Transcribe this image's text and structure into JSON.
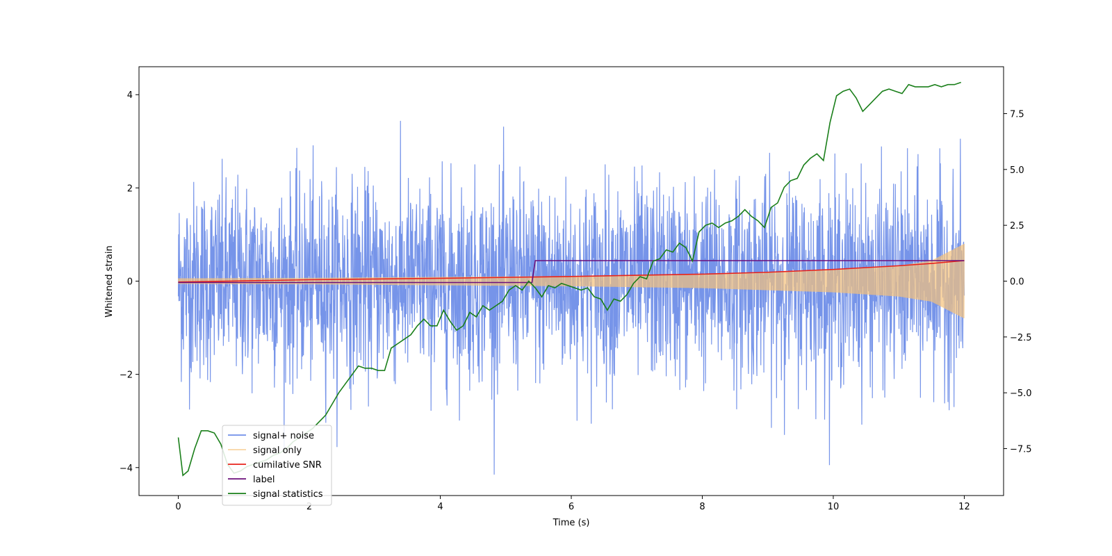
{
  "chart_data": {
    "type": "line",
    "xlabel": "Time (s)",
    "ylabel": "Whitened strain",
    "xlim": [
      -0.6,
      12.6
    ],
    "ylim": [
      -4.6,
      4.6
    ],
    "y2lim": [
      -9.6,
      9.6
    ],
    "x_ticks": [
      0,
      2,
      4,
      6,
      8,
      10,
      12
    ],
    "x_tick_labels": [
      "0",
      "2",
      "4",
      "6",
      "8",
      "10",
      "12"
    ],
    "y_ticks": [
      -4,
      -2,
      0,
      2,
      4
    ],
    "y_tick_labels": [
      "−4",
      "−2",
      "0",
      "2",
      "4"
    ],
    "y2_ticks": [
      -7.5,
      -5.0,
      -2.5,
      0.0,
      2.5,
      5.0,
      7.5
    ],
    "y2_tick_labels": [
      "−7.5",
      "−5.0",
      "−2.5",
      "0.0",
      "2.5",
      "5.0",
      "7.5"
    ],
    "grid": false,
    "legend_placement": "lower-left",
    "series": [
      {
        "name": "signal+ noise",
        "color": "#6f8ee8",
        "axis": "left",
        "description_values": {
          "t_start": 0,
          "t_end": 12,
          "sigma": 1.0,
          "peak_max": 4.15,
          "peak_min": -4.15
        }
      },
      {
        "name": "signal only",
        "color": "#f5c27a",
        "axis": "left",
        "envelope": {
          "x": [
            0,
            2,
            4,
            6,
            8,
            10,
            11,
            11.5,
            12
          ],
          "amp": [
            0.06,
            0.07,
            0.09,
            0.11,
            0.15,
            0.24,
            0.33,
            0.44,
            0.8
          ]
        }
      },
      {
        "name": "cumilative SNR",
        "color": "#e8221b",
        "axis": "left",
        "x": [
          0,
          2,
          4,
          6,
          8,
          9,
          10,
          11,
          11.5,
          12
        ],
        "y": [
          -0.02,
          0.03,
          0.06,
          0.1,
          0.15,
          0.19,
          0.25,
          0.33,
          0.38,
          0.44
        ]
      },
      {
        "name": "label",
        "color": "#6a0f7a",
        "axis": "left",
        "x": [
          0,
          5.4,
          5.45,
          12
        ],
        "y": [
          -0.03,
          -0.03,
          0.44,
          0.44
        ]
      },
      {
        "name": "signal statistics",
        "color": "#1a7f1a",
        "axis": "right",
        "x": [
          0,
          0.07,
          0.15,
          0.25,
          0.35,
          0.45,
          0.55,
          0.65,
          0.75,
          0.85,
          0.95,
          1.05,
          1.15,
          1.25,
          1.35,
          1.45,
          1.55,
          1.65,
          1.75,
          1.85,
          1.95,
          2.05,
          2.15,
          2.25,
          2.35,
          2.45,
          2.55,
          2.65,
          2.75,
          2.85,
          2.95,
          3.05,
          3.15,
          3.25,
          3.35,
          3.45,
          3.55,
          3.65,
          3.75,
          3.85,
          3.95,
          4.05,
          4.15,
          4.25,
          4.35,
          4.45,
          4.55,
          4.65,
          4.75,
          4.85,
          4.95,
          5.05,
          5.15,
          5.25,
          5.35,
          5.45,
          5.55,
          5.65,
          5.75,
          5.85,
          5.95,
          6.05,
          6.15,
          6.25,
          6.35,
          6.45,
          6.55,
          6.65,
          6.75,
          6.85,
          6.95,
          7.05,
          7.15,
          7.25,
          7.35,
          7.45,
          7.55,
          7.65,
          7.75,
          7.85,
          7.95,
          8.05,
          8.15,
          8.25,
          8.35,
          8.45,
          8.55,
          8.65,
          8.75,
          8.85,
          8.95,
          9.05,
          9.15,
          9.25,
          9.35,
          9.45,
          9.55,
          9.65,
          9.75,
          9.85,
          9.95,
          10.05,
          10.15,
          10.25,
          10.35,
          10.45,
          10.55,
          10.65,
          10.75,
          10.85,
          10.95,
          11.05,
          11.15,
          11.25,
          11.35,
          11.45,
          11.55,
          11.65,
          11.75,
          11.85,
          11.95
        ],
        "y": [
          -7.0,
          -8.7,
          -8.5,
          -7.5,
          -6.7,
          -6.7,
          -6.8,
          -7.3,
          -8.2,
          -8.6,
          -8.5,
          -8.3,
          -8.2,
          -8.1,
          -8.0,
          -7.8,
          -7.7,
          -7.5,
          -7.2,
          -7.0,
          -6.8,
          -6.6,
          -6.3,
          -6.0,
          -5.5,
          -5.0,
          -4.6,
          -4.2,
          -3.8,
          -3.9,
          -3.9,
          -4.0,
          -4.0,
          -3.0,
          -2.8,
          -2.6,
          -2.4,
          -2.0,
          -1.7,
          -2.0,
          -2.0,
          -1.3,
          -1.8,
          -2.2,
          -2.0,
          -1.4,
          -1.6,
          -1.1,
          -1.3,
          -1.1,
          -0.9,
          -0.4,
          -0.2,
          -0.4,
          0.0,
          -0.3,
          -0.7,
          -0.2,
          -0.3,
          -0.1,
          -0.2,
          -0.3,
          -0.4,
          -0.3,
          -0.7,
          -0.8,
          -1.3,
          -0.8,
          -0.9,
          -0.6,
          -0.1,
          0.2,
          0.1,
          0.9,
          1.0,
          1.4,
          1.3,
          1.7,
          1.5,
          0.9,
          2.2,
          2.5,
          2.6,
          2.4,
          2.6,
          2.7,
          2.9,
          3.2,
          2.9,
          2.7,
          2.4,
          3.3,
          3.5,
          4.2,
          4.5,
          4.6,
          5.2,
          5.5,
          5.7,
          5.4,
          7.1,
          8.3,
          8.5,
          8.6,
          8.2,
          7.6,
          7.9,
          8.2,
          8.5,
          8.6,
          8.5,
          8.4,
          8.8,
          8.7,
          8.7,
          8.7,
          8.8,
          8.7,
          8.8,
          8.8,
          8.9
        ]
      }
    ]
  }
}
